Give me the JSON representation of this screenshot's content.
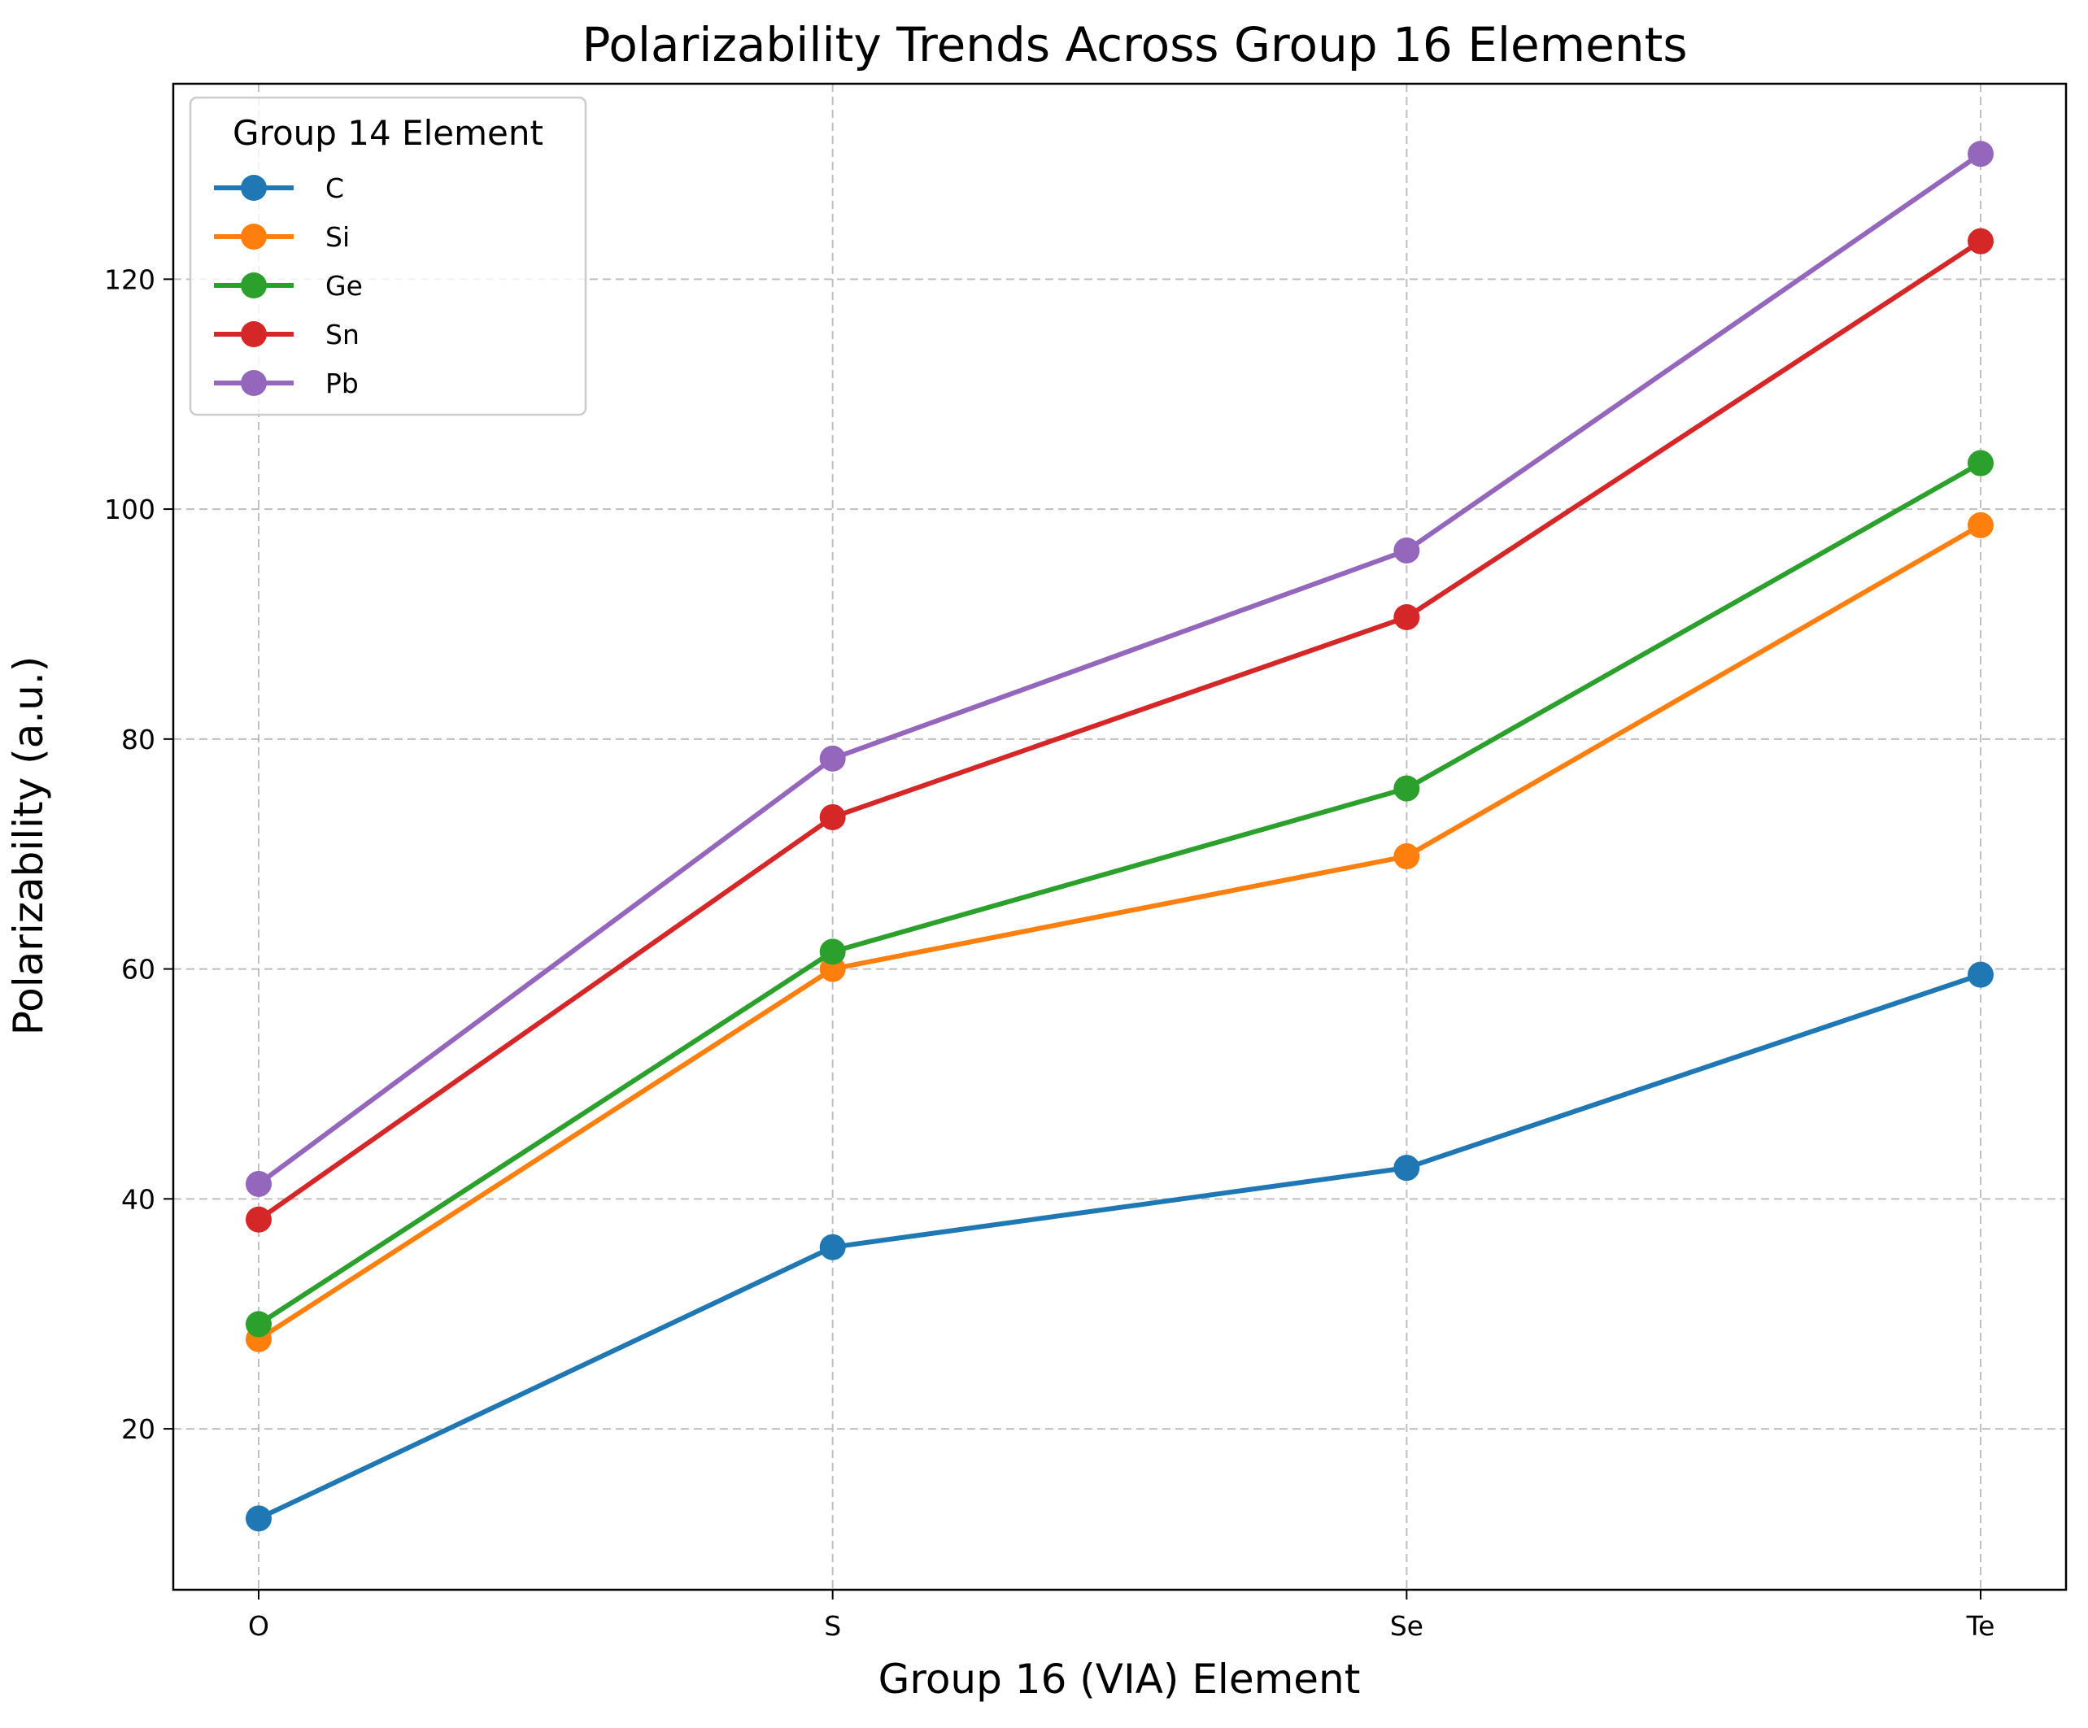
{
  "chart_data": {
    "type": "line",
    "title": "Polarizability Trends Across Group 16 Elements",
    "xlabel": "Group 16 (VIA) Element",
    "ylabel": "Polarizability (a.u.)",
    "categories": [
      "O",
      "S",
      "Se",
      "Te"
    ],
    "ylim": [
      6,
      137
    ],
    "yticks": [
      20,
      40,
      60,
      80,
      100,
      120
    ],
    "grid": true,
    "legend": {
      "title": "Group 14 Element",
      "placement": "top-left"
    },
    "series": [
      {
        "name": "C",
        "color": "#1f77b4",
        "values": [
          12.2,
          35.8,
          42.7,
          59.5
        ]
      },
      {
        "name": "Si",
        "color": "#ff7f0e",
        "values": [
          27.8,
          60.0,
          69.8,
          98.6
        ]
      },
      {
        "name": "Ge",
        "color": "#2ca02c",
        "values": [
          29.1,
          61.5,
          75.7,
          104.0
        ]
      },
      {
        "name": "Sn",
        "color": "#d62728",
        "values": [
          38.2,
          73.2,
          90.6,
          123.3
        ]
      },
      {
        "name": "Pb",
        "color": "#9467bd",
        "values": [
          41.3,
          78.3,
          96.4,
          130.9
        ]
      }
    ]
  }
}
